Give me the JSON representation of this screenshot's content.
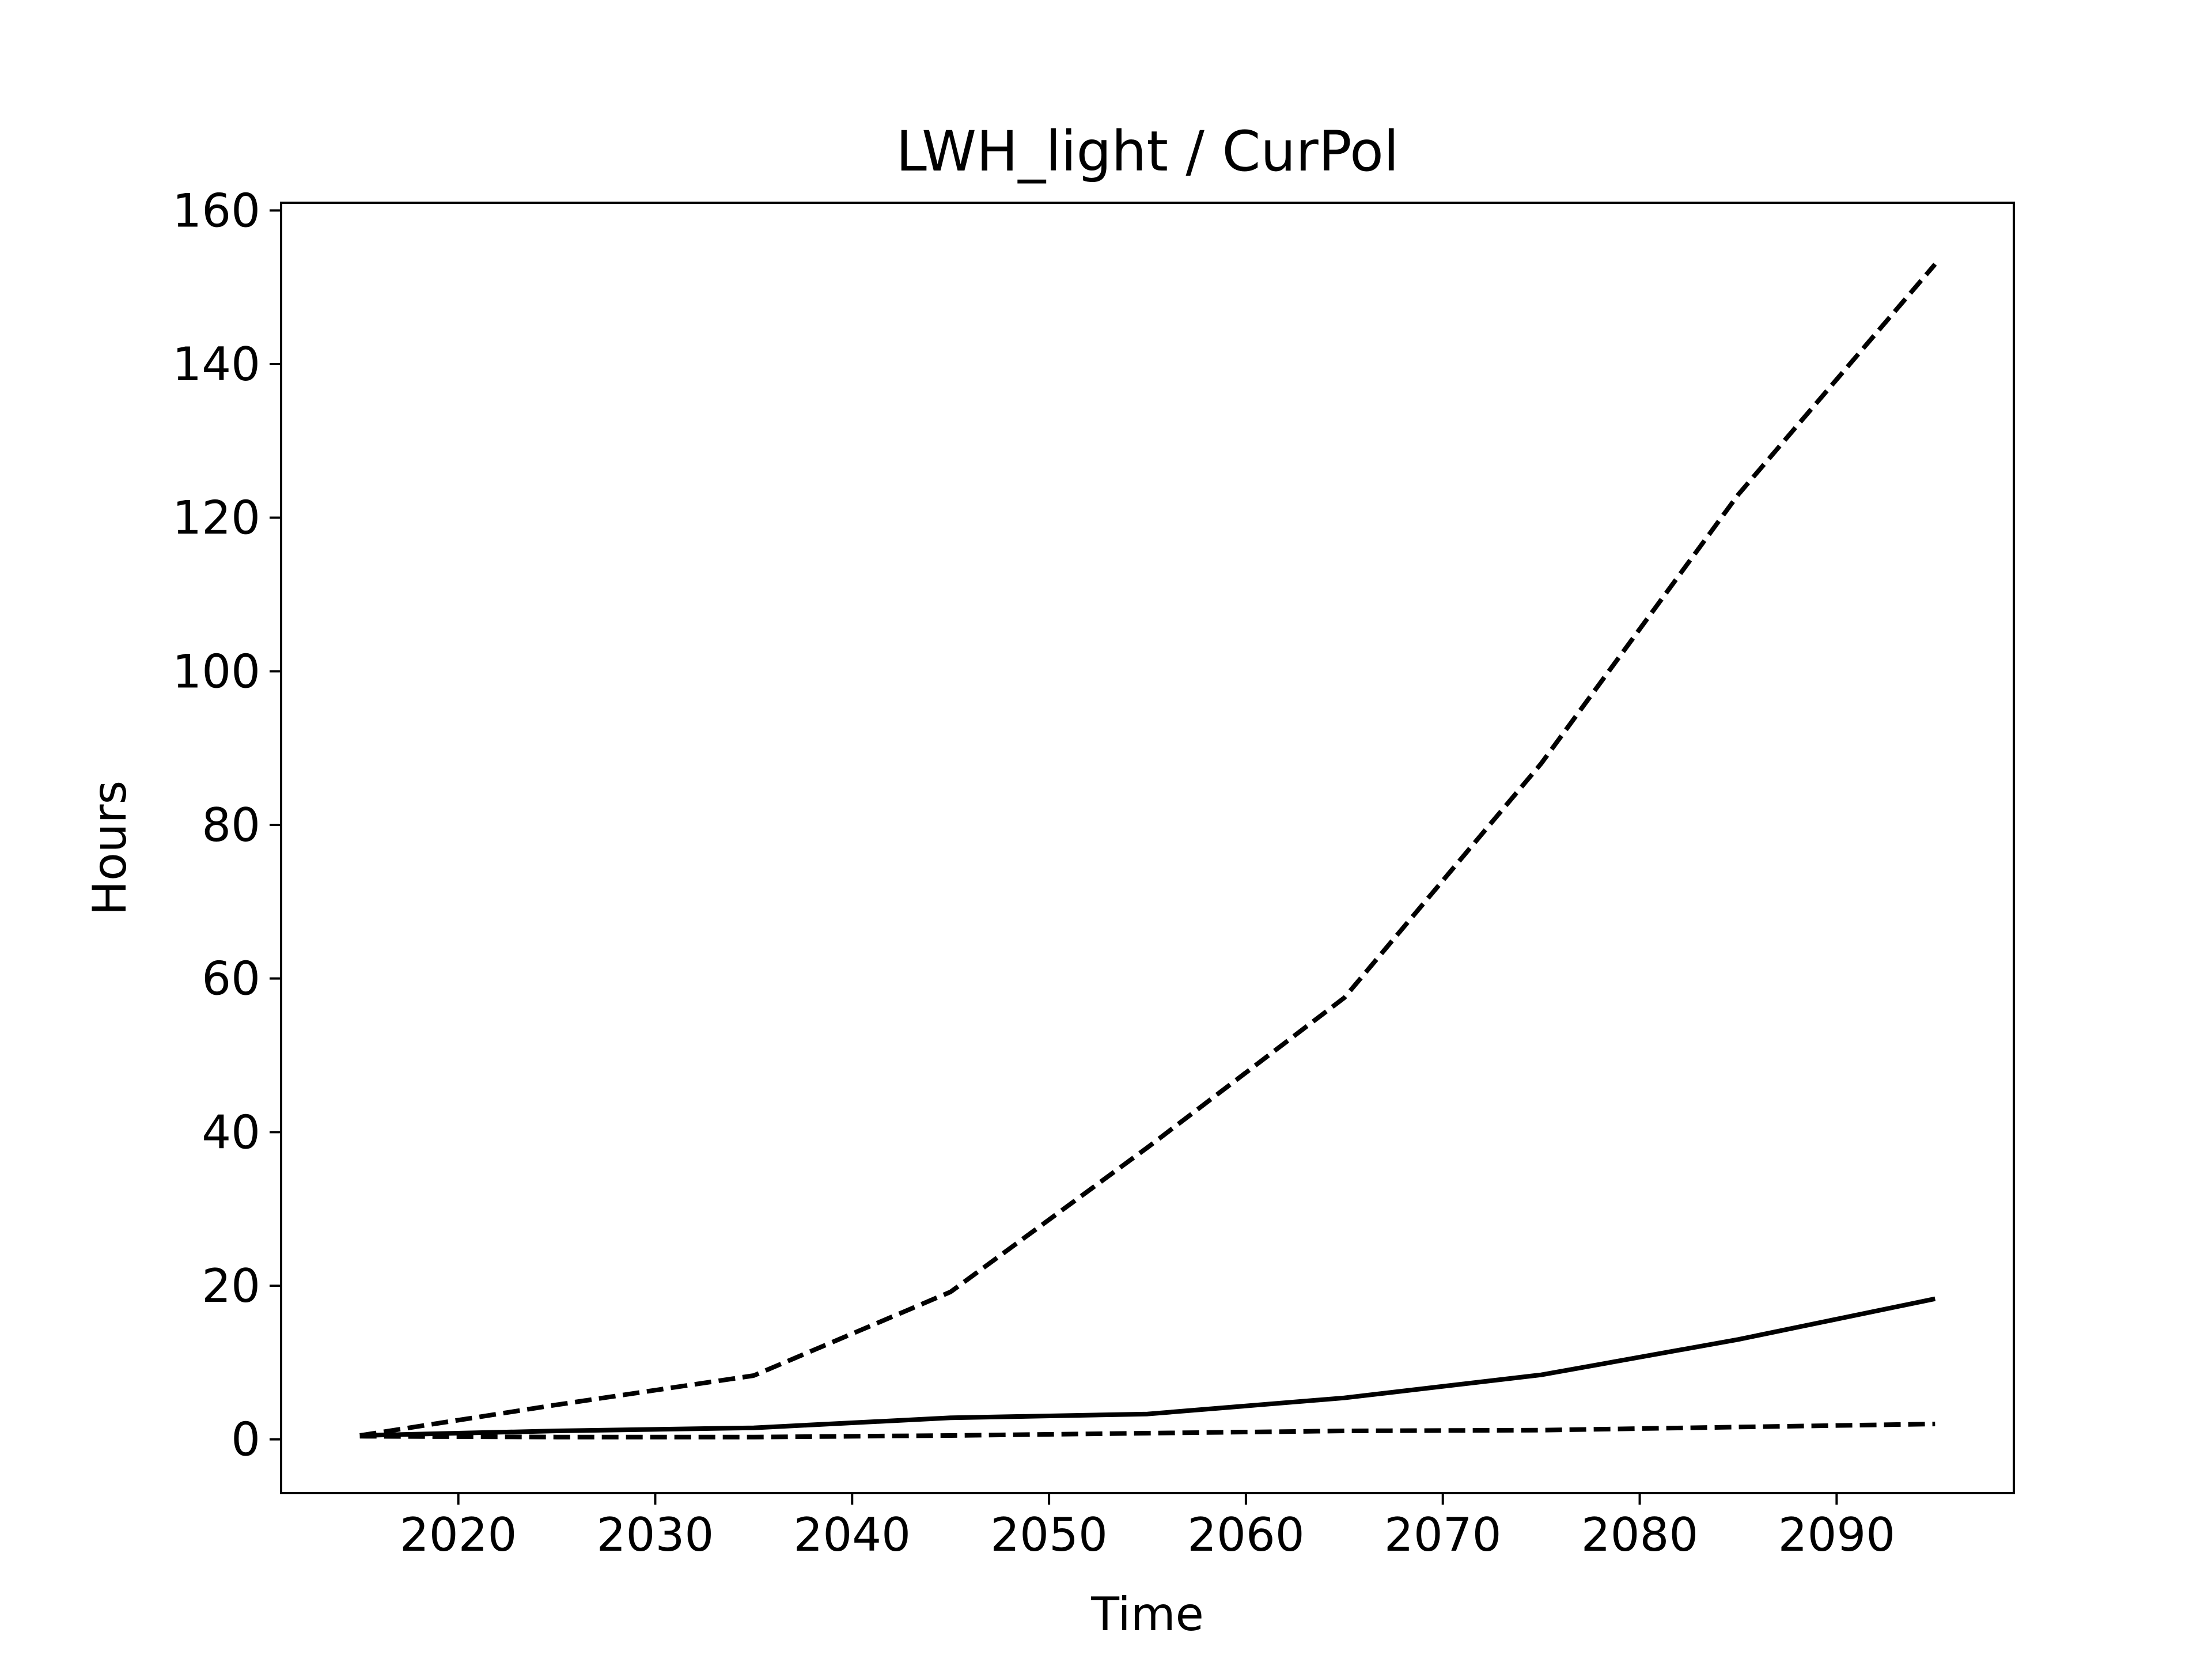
{
  "chart_data": {
    "type": "line",
    "title": "LWH_light / CurPol",
    "xlabel": "Time",
    "ylabel": "Hours",
    "xlim": [
      2011,
      2099
    ],
    "ylim": [
      -7,
      161
    ],
    "x_ticks": [
      2020,
      2030,
      2040,
      2050,
      2060,
      2070,
      2080,
      2090
    ],
    "y_ticks": [
      0,
      20,
      40,
      60,
      80,
      100,
      120,
      140,
      160
    ],
    "grid": false,
    "x": [
      2015,
      2025,
      2035,
      2045,
      2055,
      2065,
      2075,
      2085,
      2095
    ],
    "series": [
      {
        "style": "dashed",
        "color": "#000000",
        "values": [
          0.5,
          4.5,
          8.3,
          19.2,
          38.0,
          57.5,
          88.0,
          123.0,
          153.0
        ]
      },
      {
        "style": "solid",
        "color": "#000000",
        "values": [
          0.5,
          1.1,
          1.5,
          2.8,
          3.3,
          5.4,
          8.4,
          13.0,
          18.3
        ]
      },
      {
        "style": "dashed",
        "color": "#000000",
        "values": [
          0.4,
          0.3,
          0.3,
          0.5,
          0.8,
          1.1,
          1.2,
          1.6,
          2.0
        ]
      }
    ]
  }
}
